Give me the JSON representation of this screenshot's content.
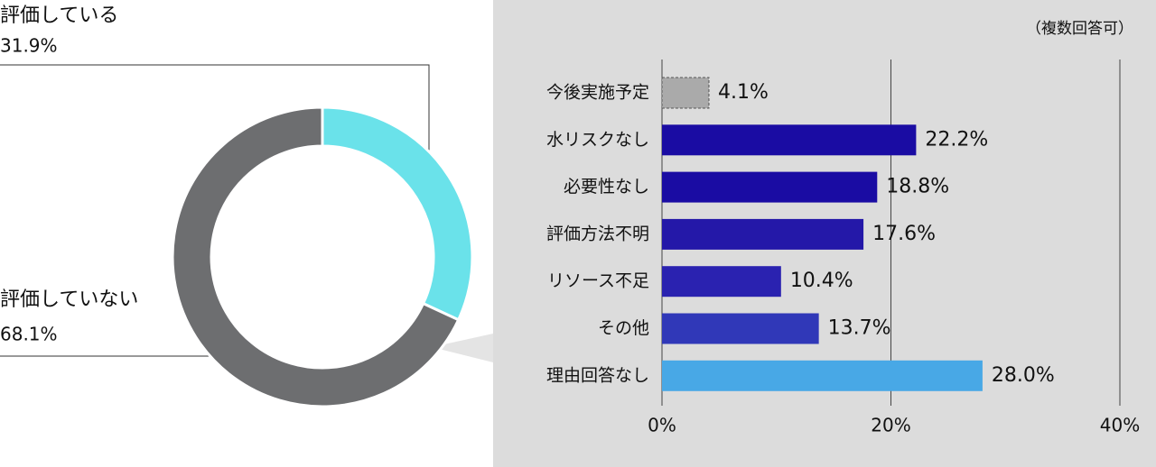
{
  "chart_data": [
    {
      "type": "donut",
      "categories": [
        "評価している",
        "評価していない"
      ],
      "values": [
        31.9,
        68.1
      ],
      "value_labels": [
        "31.9%",
        "68.1%"
      ],
      "colors": [
        "#6ae2ea",
        "#6d6e70"
      ]
    },
    {
      "type": "hbar",
      "annotation": "（複数回答可）",
      "categories": [
        "今後実施予定",
        "水リスクなし",
        "必要性なし",
        "評価方法不明",
        "リソース不足",
        "その他",
        "理由回答なし"
      ],
      "values": [
        4.1,
        22.2,
        18.8,
        17.6,
        10.4,
        13.7,
        28.0
      ],
      "value_labels": [
        "4.1%",
        "22.2%",
        "18.8%",
        "17.6%",
        "10.4%",
        "13.7%",
        "28.0%"
      ],
      "colors": [
        "#aaaaaa",
        "#1a0ca3",
        "#1a0ca3",
        "#2418a8",
        "#2a22b0",
        "#3038b8",
        "#48a8e6"
      ],
      "xlim": [
        0,
        40
      ],
      "xticks": [
        {
          "value": 0,
          "label": "0%"
        },
        {
          "value": 20,
          "label": "20%"
        },
        {
          "value": 40,
          "label": "40%"
        }
      ],
      "grid": true
    }
  ]
}
